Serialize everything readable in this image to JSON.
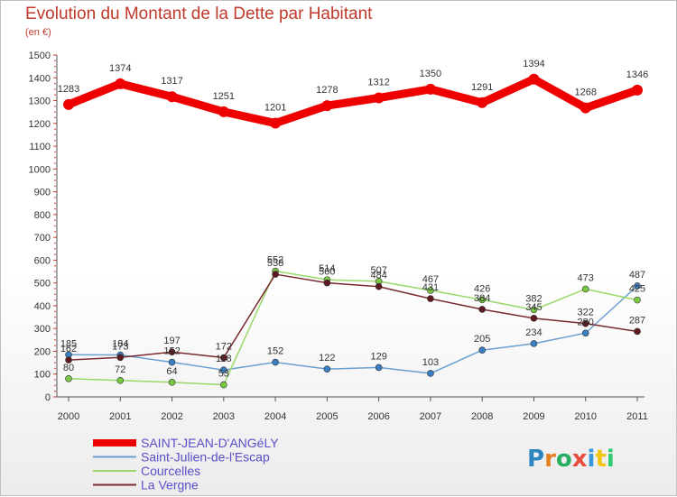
{
  "header": {
    "title": "Evolution du Montant de la Dette par Habitant",
    "subtitle": "(en €)"
  },
  "logo": {
    "letters": [
      {
        "ch": "P",
        "color": "#2e86c1"
      },
      {
        "ch": "r",
        "color": "#e67e22"
      },
      {
        "ch": "o",
        "color": "#27ae60"
      },
      {
        "ch": "x",
        "color": "#e74c3c"
      },
      {
        "ch": "i",
        "color": "#3498db"
      },
      {
        "ch": "t",
        "color": "#f1c40f"
      },
      {
        "ch": "i",
        "color": "#2ecc71"
      }
    ]
  },
  "chart_data": {
    "type": "line",
    "title": "Evolution du Montant de la Dette par Habitant",
    "subtitle": "(en €)",
    "xlabel": "",
    "ylabel": "",
    "x": [
      "2000",
      "2001",
      "2002",
      "2003",
      "2004",
      "2005",
      "2006",
      "2007",
      "2008",
      "2009",
      "2010",
      "2011"
    ],
    "ylim": [
      0,
      1500
    ],
    "yticks": [
      0,
      100,
      200,
      300,
      400,
      500,
      600,
      700,
      800,
      900,
      1000,
      1100,
      1200,
      1300,
      1400,
      1500
    ],
    "grid": false,
    "legend_position": "bottom-left",
    "series": [
      {
        "name": "SAINT-JEAN-D'ANGéLY",
        "color": "#ee0000",
        "emphasis": true,
        "values": [
          1283,
          1374,
          1317,
          1251,
          1201,
          1278,
          1312,
          1350,
          1291,
          1394,
          1268,
          1346
        ]
      },
      {
        "name": "Saint-Julien-de-l'Escap",
        "color": "#6a9fd0",
        "point_color": "#3a7fc1",
        "values": [
          185,
          184,
          152,
          118,
          152,
          122,
          129,
          103,
          205,
          234,
          280,
          487
        ]
      },
      {
        "name": "Courcelles",
        "color": "#9ad86a",
        "point_color": "#7ac943",
        "values": [
          80,
          72,
          64,
          53,
          552,
          514,
          507,
          467,
          426,
          382,
          473,
          425
        ]
      },
      {
        "name": "La Vergne",
        "color": "#7a2a30",
        "point_color": "#5e1a20",
        "values": [
          162,
          173,
          197,
          172,
          538,
          500,
          484,
          431,
          384,
          345,
          322,
          287
        ]
      }
    ]
  }
}
